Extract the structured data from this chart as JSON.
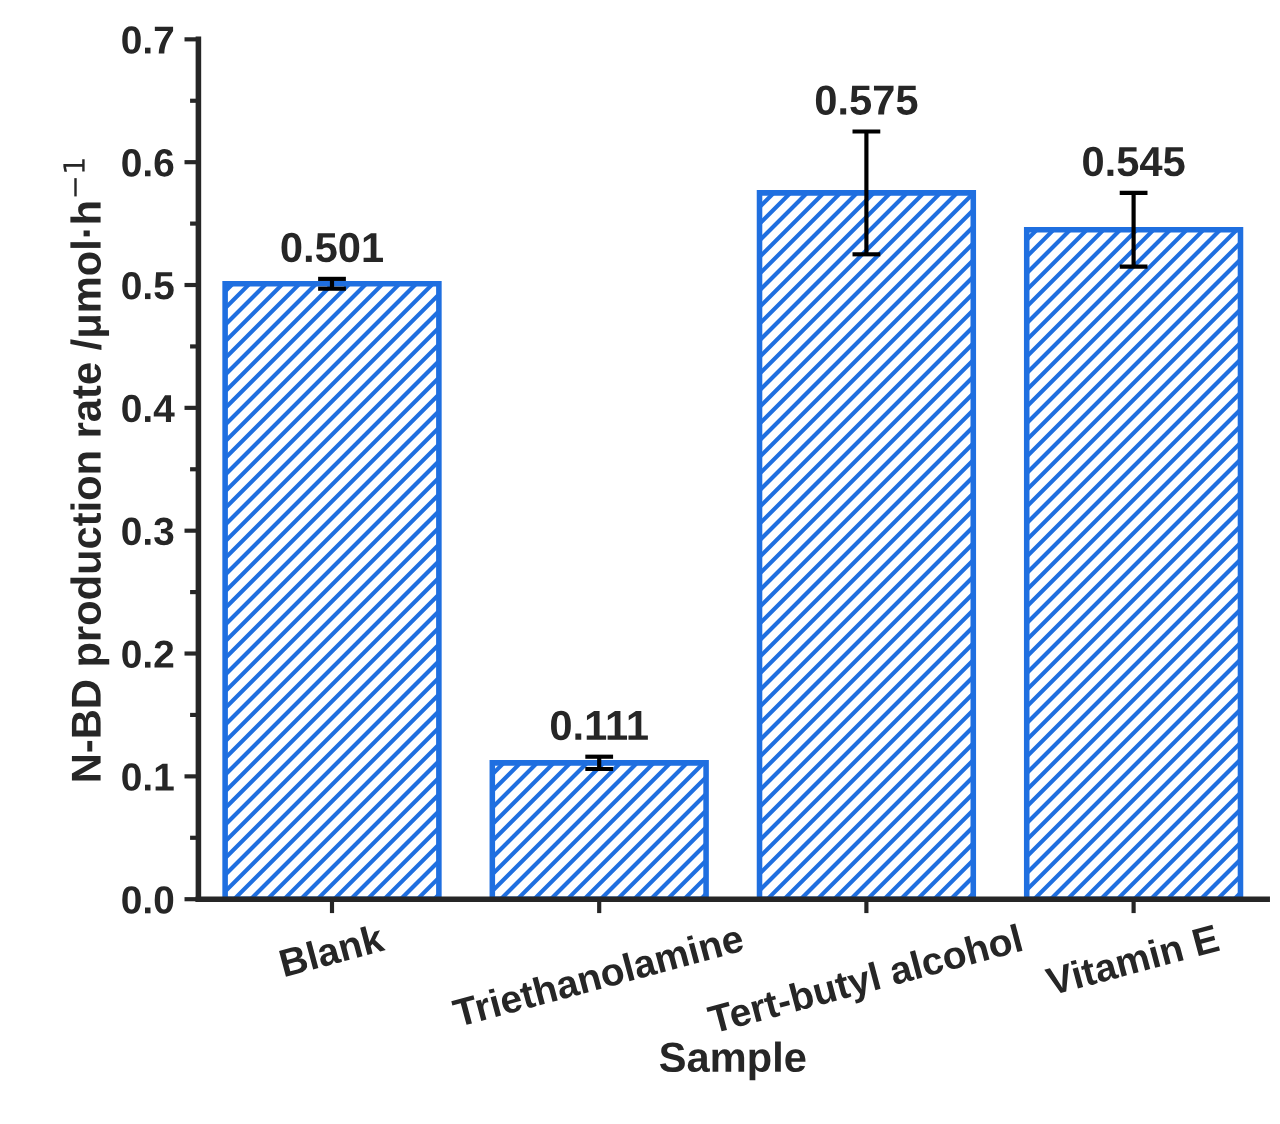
{
  "chart_data": {
    "type": "bar",
    "xlabel": "Sample",
    "ylabel": "N-BD production rate /μmol·h$^{−1}$",
    "categories": [
      "Blank",
      "Triethanolamine",
      "Tert-butyl alcohol",
      "Vitamin E"
    ],
    "values": [
      0.501,
      0.111,
      0.575,
      0.545
    ],
    "errors": [
      0.004,
      0.005,
      0.05,
      0.03
    ],
    "color": "#1f6fe0",
    "data_labels": true,
    "ylim": [
      0,
      0.7
    ],
    "yticks": [
      {
        "value": 0,
        "label": "0.0"
      },
      0.1,
      0.2,
      0.3,
      0.4,
      0.5,
      0.6,
      0.7
    ],
    "grid": false
  }
}
